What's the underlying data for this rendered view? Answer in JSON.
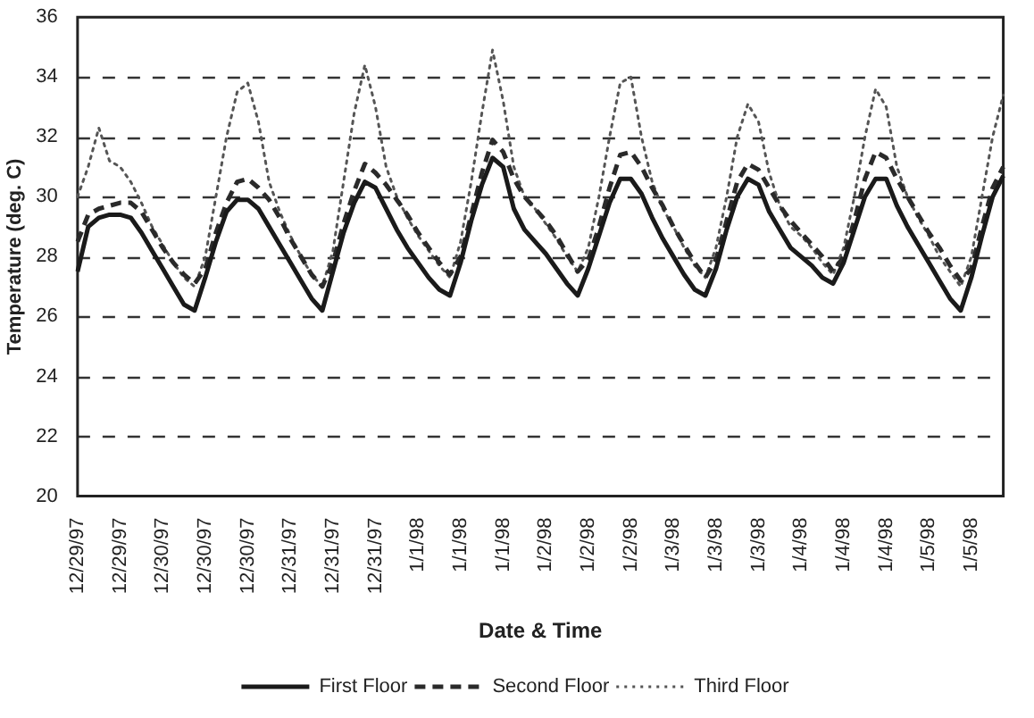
{
  "chart_data": {
    "type": "line",
    "xlabel": "Date & Time",
    "ylabel": "Temperature (deg. C)",
    "categories": [
      "12/29/97",
      null,
      null,
      null,
      "12/29/97",
      null,
      null,
      null,
      "12/30/97",
      null,
      null,
      null,
      "12/30/97",
      null,
      null,
      null,
      "12/30/97",
      null,
      null,
      null,
      "12/31/97",
      null,
      null,
      null,
      "12/31/97",
      null,
      null,
      null,
      "12/31/97",
      null,
      null,
      null,
      "1/1/98",
      null,
      null,
      null,
      "1/1/98",
      null,
      null,
      null,
      "1/1/98",
      null,
      null,
      null,
      "1/2/98",
      null,
      null,
      null,
      "1/2/98",
      null,
      null,
      null,
      "1/2/98",
      null,
      null,
      null,
      "1/3/98",
      null,
      null,
      null,
      "1/3/98",
      null,
      null,
      null,
      "1/3/98",
      null,
      null,
      null,
      "1/4/98",
      null,
      null,
      null,
      "1/4/98",
      null,
      null,
      null,
      "1/4/98",
      null,
      null,
      null,
      "1/5/98",
      null,
      null,
      null,
      "1/5/98",
      null,
      null,
      null
    ],
    "series": [
      {
        "name": "First Floor",
        "color": "#1a1a1a",
        "line_style": "solid",
        "values": [
          27.5,
          29.0,
          29.3,
          29.4,
          29.4,
          29.3,
          28.8,
          28.2,
          27.6,
          27.0,
          26.4,
          26.2,
          27.3,
          28.5,
          29.5,
          29.9,
          29.9,
          29.6,
          29.0,
          28.4,
          27.8,
          27.2,
          26.6,
          26.2,
          27.5,
          28.8,
          29.8,
          30.5,
          30.3,
          29.6,
          28.9,
          28.3,
          27.8,
          27.3,
          26.9,
          26.7,
          27.8,
          29.2,
          30.4,
          31.3,
          31.0,
          29.6,
          28.9,
          28.5,
          28.1,
          27.6,
          27.1,
          26.7,
          27.6,
          28.7,
          29.8,
          30.6,
          30.6,
          30.1,
          29.3,
          28.6,
          28.0,
          27.4,
          26.9,
          26.7,
          27.6,
          28.9,
          30.0,
          30.6,
          30.4,
          29.5,
          28.9,
          28.3,
          28.0,
          27.7,
          27.3,
          27.1,
          27.8,
          28.9,
          30.0,
          30.6,
          30.6,
          29.7,
          29.0,
          28.4,
          27.8,
          27.2,
          26.6,
          26.2,
          27.3,
          28.7,
          30.0,
          30.7
        ]
      },
      {
        "name": "Second Floor",
        "color": "#2a2a2a",
        "line_style": "dashed",
        "values": [
          28.5,
          29.4,
          29.6,
          29.7,
          29.8,
          29.8,
          29.5,
          28.9,
          28.3,
          27.8,
          27.4,
          27.1,
          27.6,
          28.8,
          29.8,
          30.5,
          30.6,
          30.3,
          29.9,
          29.3,
          28.6,
          28.0,
          27.4,
          27.0,
          27.8,
          29.1,
          30.2,
          31.1,
          30.8,
          30.4,
          29.9,
          29.4,
          28.8,
          28.3,
          27.8,
          27.4,
          28.0,
          29.4,
          30.8,
          31.9,
          31.5,
          30.6,
          30.0,
          29.6,
          29.2,
          28.7,
          28.1,
          27.5,
          27.9,
          29.0,
          30.3,
          31.4,
          31.5,
          31.0,
          30.3,
          29.7,
          29.0,
          28.4,
          27.8,
          27.3,
          27.9,
          29.2,
          30.5,
          31.1,
          30.9,
          30.3,
          29.7,
          29.2,
          28.8,
          28.4,
          28.0,
          27.5,
          28.0,
          29.2,
          30.6,
          31.5,
          31.3,
          30.6,
          30.0,
          29.4,
          28.8,
          28.3,
          27.7,
          27.2,
          27.6,
          29.0,
          30.3,
          31.0
        ]
      },
      {
        "name": "Third Floor",
        "color": "#555555",
        "line_style": "dotted",
        "values": [
          30.0,
          31.0,
          32.3,
          31.2,
          31.0,
          30.5,
          29.8,
          29.0,
          28.4,
          27.8,
          27.3,
          27.0,
          28.0,
          30.0,
          32.0,
          33.5,
          33.8,
          32.5,
          30.5,
          29.5,
          28.7,
          28.0,
          27.4,
          27.0,
          28.2,
          30.5,
          32.8,
          34.4,
          33.0,
          31.0,
          30.0,
          29.3,
          28.7,
          28.2,
          27.7,
          27.3,
          28.5,
          30.5,
          32.8,
          34.9,
          33.2,
          31.0,
          30.0,
          29.6,
          29.1,
          28.6,
          28.0,
          27.5,
          28.3,
          30.0,
          32.0,
          33.8,
          34.0,
          32.0,
          30.5,
          29.6,
          29.0,
          28.3,
          27.7,
          27.3,
          28.3,
          30.0,
          32.0,
          33.1,
          32.5,
          30.8,
          29.7,
          29.0,
          28.7,
          28.3,
          27.8,
          27.4,
          28.3,
          30.0,
          32.0,
          33.6,
          33.0,
          31.0,
          30.0,
          29.3,
          28.7,
          28.0,
          27.5,
          27.0,
          28.0,
          30.0,
          32.0,
          33.4
        ]
      }
    ],
    "ylim": [
      20,
      36
    ],
    "yticks": [
      20,
      22,
      24,
      26,
      28,
      30,
      32,
      34,
      36
    ],
    "grid": "y",
    "legend": "bottom",
    "marker": "none"
  }
}
